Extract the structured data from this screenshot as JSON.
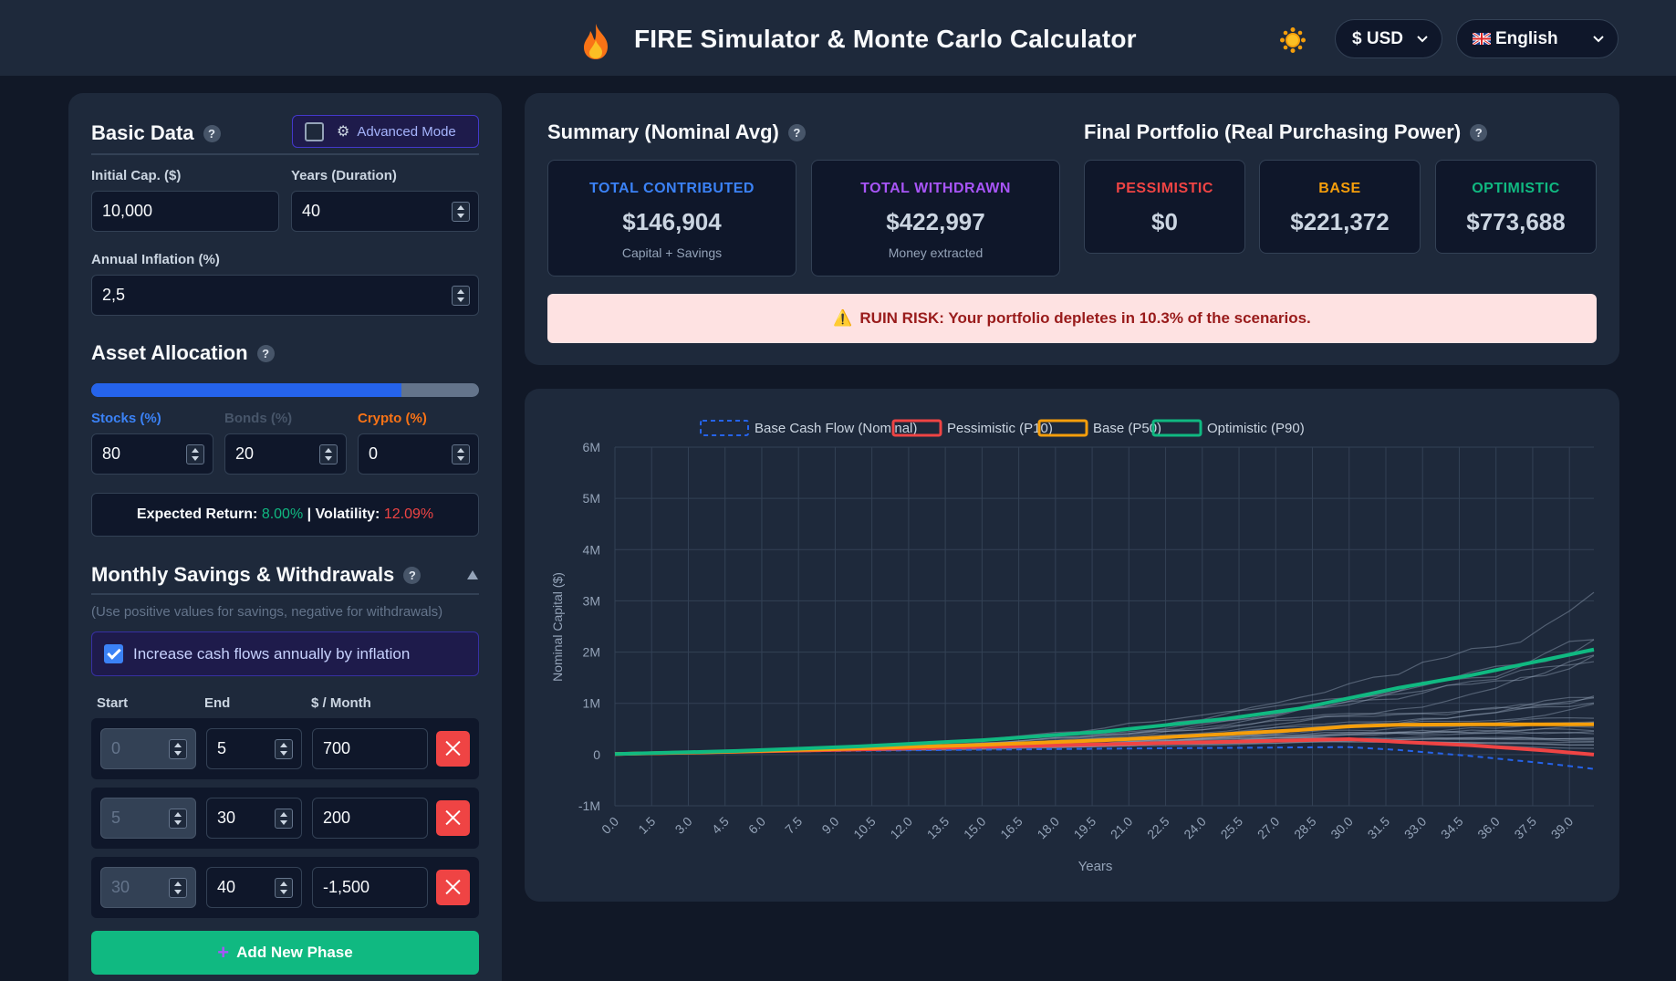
{
  "header": {
    "title": "FIRE Simulator & Monte Carlo Calculator",
    "currency": "$ USD",
    "language": "English"
  },
  "basic": {
    "title": "Basic Data",
    "advanced_label": "Advanced Mode",
    "initial_label": "Initial Cap. ($)",
    "initial_value": "10,000",
    "years_label": "Years (Duration)",
    "years_value": "40",
    "inflation_label": "Annual Inflation (%)",
    "inflation_value": "2,5"
  },
  "allocation": {
    "title": "Asset Allocation",
    "stocks_label": "Stocks (%)",
    "stocks_value": "80",
    "bonds_label": "Bonds (%)",
    "bonds_value": "20",
    "crypto_label": "Crypto (%)",
    "crypto_value": "0",
    "stocks_fraction": 0.8,
    "return_label": "Expected Return:",
    "return_value": "8.00%",
    "volatility_label": "Volatility:",
    "volatility_value": "12.09%"
  },
  "savings": {
    "title": "Monthly Savings & Withdrawals",
    "hint": "(Use positive values for savings, negative for withdrawals)",
    "inflation_toggle": "Increase cash flows annually by inflation",
    "col_start": "Start",
    "col_end": "End",
    "col_month": "$ / Month",
    "phases": [
      {
        "start": "0",
        "end": "5",
        "amount": "700"
      },
      {
        "start": "5",
        "end": "30",
        "amount": "200"
      },
      {
        "start": "30",
        "end": "40",
        "amount": "-1,500"
      }
    ],
    "add_label": "Add New Phase"
  },
  "summary": {
    "title": "Summary (Nominal Avg)",
    "contributed_label": "TOTAL CONTRIBUTED",
    "contributed_value": "$146,904",
    "contributed_sub": "Capital + Savings",
    "withdrawn_label": "TOTAL WITHDRAWN",
    "withdrawn_value": "$422,997",
    "withdrawn_sub": "Money extracted",
    "final_title": "Final Portfolio (Real Purchasing Power)",
    "pessimistic_label": "PESSIMISTIC",
    "pessimistic_value": "$0",
    "base_label": "BASE",
    "base_value": "$221,372",
    "optimistic_label": "OPTIMISTIC",
    "optimistic_value": "$773,688",
    "ruin_text": "RUIN RISK: Your portfolio depletes in 10.3% of the scenarios."
  },
  "colors": {
    "contributed": "#3b82f6",
    "withdrawn": "#a855f7",
    "pessimistic": "#ef4444",
    "base": "#f59e0b",
    "optimistic": "#10b981"
  },
  "chart_data": {
    "type": "line",
    "xlabel": "Years",
    "ylabel": "Nominal Capital ($)",
    "ylim": [
      -1000000,
      6000000
    ],
    "y_ticks": [
      "-1M",
      "0",
      "1M",
      "2M",
      "3M",
      "4M",
      "5M",
      "6M"
    ],
    "x_ticks": [
      "0.0",
      "1.5",
      "3.0",
      "4.5",
      "6.0",
      "7.5",
      "9.0",
      "10.5",
      "12.0",
      "13.5",
      "15.0",
      "16.5",
      "18.0",
      "19.5",
      "21.0",
      "22.5",
      "24.0",
      "25.5",
      "27.0",
      "28.5",
      "30.0",
      "31.5",
      "33.0",
      "34.5",
      "36.0",
      "37.5",
      "39.0"
    ],
    "legend_position": "top",
    "grid": true,
    "x": [
      0,
      5,
      10,
      15,
      20,
      25,
      28,
      30,
      32,
      35,
      38,
      40
    ],
    "series": [
      {
        "name": "Base Cash Flow (Nominal)",
        "style": "dashed",
        "color": "#2563eb",
        "values": [
          10000,
          50000,
          75000,
          95000,
          115000,
          130000,
          140000,
          145000,
          90000,
          -30000,
          -170000,
          -280000
        ]
      },
      {
        "name": "Pessimistic (P10)",
        "color": "#ef4444",
        "values": [
          10000,
          55000,
          100000,
          150000,
          200000,
          250000,
          280000,
          300000,
          250000,
          180000,
          80000,
          0
        ]
      },
      {
        "name": "Base (P50)",
        "color": "#f59e0b",
        "values": [
          10000,
          60000,
          120000,
          190000,
          280000,
          400000,
          480000,
          550000,
          580000,
          590000,
          590000,
          590000
        ]
      },
      {
        "name": "Optimistic (P90)",
        "color": "#10b981",
        "values": [
          10000,
          70000,
          160000,
          280000,
          450000,
          700000,
          900000,
          1100000,
          1300000,
          1550000,
          1850000,
          2050000
        ]
      }
    ]
  }
}
